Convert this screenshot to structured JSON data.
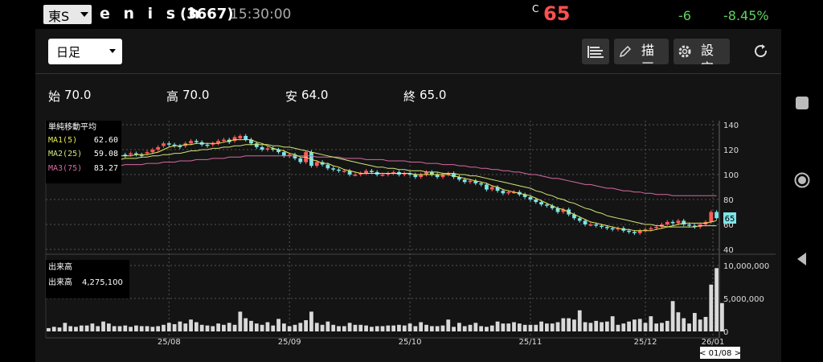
{
  "header": {
    "exchange": "東S",
    "company": "e n i s h",
    "code": "(3667)",
    "time": "15:30:00",
    "close_label": "C",
    "price": "65",
    "change": "-6",
    "change_pct": "-8.45%"
  },
  "toolbar": {
    "period": "日足",
    "draw_label": "描画",
    "settings_label": "設定",
    "icons": [
      "list-icon",
      "pencil-icon",
      "gear-icon",
      "refresh-icon"
    ]
  },
  "ohlc": {
    "open_label": "始",
    "open": "70.0",
    "high_label": "高",
    "high": "70.0",
    "low_label": "安",
    "low": "64.0",
    "close_label": "終",
    "close": "65.0"
  },
  "legend": {
    "title": "単純移動平均",
    "ma1_label": "MA1(5)",
    "ma1_value": "62.60",
    "ma1_color": "#e6e657",
    "ma2_label": "MA2(25)",
    "ma2_value": "59.08",
    "ma2_color": "#cfe67a",
    "ma3_label": "MA3(75)",
    "ma3_value": "83.27",
    "ma3_color": "#d56aa0"
  },
  "volume_legend": {
    "title": "出来高",
    "label": "出来高",
    "value": "4,275,100"
  },
  "cursor_date": "< 01/08 >",
  "colors": {
    "up": "#ff5a5a",
    "down": "#7de3e8",
    "volume": "#d9d9d9",
    "positive": "#5fd35f",
    "negative": "#ff4f4f"
  },
  "chart_data": {
    "type": "candlestick",
    "x_ticks": [
      "25/08",
      "25/09",
      "25/10",
      "25/11",
      "25/12",
      "26/01"
    ],
    "price_ticks": [
      140,
      120,
      100,
      80,
      60,
      40
    ],
    "volume_ticks": [
      "10,000,000",
      "5,000,000",
      "0"
    ],
    "price_ylim": [
      40,
      140
    ],
    "volume_ylim": [
      0,
      10000000
    ],
    "last_price_label": "65",
    "candles_close": [
      110,
      109,
      111,
      110,
      112,
      114,
      113,
      112,
      114,
      115,
      114,
      113,
      115,
      116,
      115,
      117,
      116,
      115,
      118,
      120,
      122,
      125,
      124,
      123,
      122,
      125,
      127,
      126,
      124,
      123,
      125,
      127,
      128,
      126,
      130,
      131,
      128,
      125,
      122,
      120,
      121,
      120,
      118,
      115,
      116,
      113,
      110,
      118,
      107,
      110,
      108,
      105,
      104,
      103,
      103,
      100,
      100,
      101,
      103,
      102,
      100,
      100,
      101,
      102,
      100,
      101,
      100,
      98,
      100,
      102,
      100,
      98,
      100,
      101,
      98,
      96,
      94,
      95,
      93,
      92,
      88,
      90,
      87,
      85,
      86,
      86,
      84,
      82,
      80,
      78,
      76,
      75,
      73,
      70,
      72,
      68,
      65,
      63,
      60,
      60,
      59,
      58,
      57,
      56,
      57,
      55,
      54,
      53,
      55,
      56,
      57,
      58,
      60,
      62,
      61,
      63,
      60,
      59,
      58,
      60,
      62,
      70,
      65
    ],
    "candles_open": [
      111,
      110,
      110,
      111,
      111,
      113,
      114,
      113,
      113,
      114,
      115,
      114,
      114,
      115,
      116,
      116,
      117,
      116,
      117,
      118,
      120,
      123,
      125,
      124,
      123,
      123,
      125,
      127,
      126,
      124,
      124,
      125,
      127,
      128,
      127,
      129,
      131,
      128,
      125,
      122,
      120,
      121,
      120,
      118,
      115,
      116,
      113,
      110,
      118,
      107,
      110,
      108,
      105,
      104,
      103,
      103,
      100,
      100,
      101,
      103,
      102,
      100,
      100,
      101,
      102,
      100,
      101,
      100,
      98,
      100,
      102,
      100,
      98,
      100,
      101,
      98,
      96,
      94,
      95,
      93,
      92,
      88,
      90,
      87,
      85,
      86,
      86,
      84,
      82,
      80,
      78,
      76,
      75,
      73,
      70,
      72,
      68,
      65,
      63,
      60,
      60,
      59,
      58,
      57,
      56,
      57,
      55,
      54,
      53,
      55,
      56,
      57,
      58,
      60,
      62,
      61,
      63,
      60,
      59,
      58,
      60,
      62,
      70
    ],
    "ma1": [
      110,
      110,
      110,
      111,
      111,
      112,
      112,
      113,
      113,
      113,
      114,
      114,
      114,
      115,
      115,
      115,
      116,
      116,
      116,
      117,
      118,
      120,
      122,
      123,
      123,
      124,
      124,
      125,
      125,
      125,
      125,
      125,
      126,
      127,
      128,
      128,
      128,
      128,
      126,
      125,
      123,
      121,
      120,
      119,
      117,
      116,
      114,
      114,
      112,
      111,
      109,
      109,
      107,
      106,
      104,
      103,
      102,
      101,
      101,
      101,
      101,
      101,
      101,
      101,
      101,
      101,
      101,
      100,
      100,
      100,
      100,
      100,
      100,
      100,
      99,
      98,
      97,
      96,
      95,
      94,
      93,
      91,
      90,
      88,
      87,
      86,
      85,
      84,
      83,
      81,
      79,
      77,
      75,
      73,
      72,
      70,
      68,
      66,
      64,
      62,
      61,
      60,
      59,
      58,
      57,
      56,
      56,
      55,
      55,
      55,
      55,
      56,
      57,
      58,
      59,
      60,
      61,
      61,
      61,
      61,
      61,
      62,
      63
    ],
    "ma2": [
      108,
      108,
      109,
      109,
      109,
      110,
      110,
      110,
      111,
      111,
      111,
      112,
      112,
      112,
      113,
      113,
      113,
      114,
      114,
      115,
      115,
      116,
      116,
      117,
      117,
      118,
      119,
      119,
      120,
      120,
      121,
      121,
      122,
      122,
      123,
      123,
      124,
      124,
      124,
      124,
      124,
      123,
      123,
      122,
      122,
      121,
      120,
      119,
      118,
      117,
      116,
      115,
      114,
      113,
      112,
      111,
      110,
      109,
      108,
      107,
      106,
      106,
      105,
      105,
      104,
      104,
      103,
      103,
      103,
      102,
      102,
      102,
      101,
      101,
      101,
      100,
      100,
      99,
      99,
      98,
      97,
      96,
      95,
      94,
      93,
      92,
      91,
      90,
      89,
      87,
      86,
      84,
      83,
      81,
      80,
      78,
      77,
      75,
      73,
      72,
      70,
      69,
      67,
      66,
      65,
      64,
      63,
      62,
      61,
      60,
      60,
      59,
      59,
      58,
      58,
      58,
      58,
      58,
      58,
      59,
      59,
      59,
      59
    ],
    "ma3": [
      104,
      104,
      104,
      105,
      105,
      105,
      105,
      106,
      106,
      106,
      106,
      107,
      107,
      107,
      108,
      108,
      108,
      108,
      109,
      109,
      109,
      110,
      110,
      110,
      111,
      111,
      111,
      112,
      112,
      112,
      113,
      113,
      113,
      114,
      114,
      114,
      115,
      115,
      115,
      115,
      115,
      115,
      115,
      115,
      115,
      115,
      115,
      115,
      115,
      114,
      114,
      114,
      114,
      114,
      113,
      113,
      113,
      113,
      112,
      112,
      112,
      112,
      111,
      111,
      111,
      111,
      110,
      110,
      110,
      109,
      109,
      109,
      108,
      108,
      108,
      107,
      107,
      106,
      106,
      105,
      105,
      104,
      104,
      103,
      103,
      102,
      102,
      101,
      100,
      100,
      99,
      98,
      97,
      97,
      96,
      95,
      94,
      93,
      92,
      92,
      91,
      90,
      89,
      89,
      88,
      87,
      87,
      86,
      86,
      85,
      85,
      84,
      84,
      84,
      83,
      83,
      83,
      83,
      83,
      83,
      83,
      83,
      83
    ],
    "volume": [
      0.5,
      0.7,
      0.6,
      1.3,
      0.8,
      0.7,
      0.9,
      0.9,
      1.2,
      0.8,
      1.5,
      1.2,
      0.8,
      0.8,
      0.9,
      0.7,
      0.9,
      0.8,
      0.8,
      0.7,
      0.8,
      1.0,
      1.3,
      1.1,
      1.5,
      1.2,
      1.8,
      1.4,
      1.0,
      0.9,
      0.8,
      1.2,
      1.0,
      1.3,
      1.0,
      3.0,
      2.0,
      1.6,
      1.2,
      1.0,
      1.4,
      0.9,
      1.9,
      1.2,
      0.8,
      1.0,
      1.3,
      1.7,
      3.0,
      1.3,
      1.0,
      1.5,
      1.0,
      0.8,
      0.8,
      1.3,
      1.0,
      1.0,
      0.9,
      0.7,
      0.8,
      0.8,
      0.9,
      0.9,
      1.0,
      0.9,
      1.2,
      0.8,
      1.4,
      1.0,
      0.8,
      0.8,
      0.9,
      1.8,
      0.7,
      1.3,
      0.8,
      1.0,
      1.3,
      0.8,
      0.7,
      0.9,
      1.5,
      1.2,
      1.2,
      1.4,
      1.2,
      1.0,
      1.0,
      1.0,
      1.5,
      1.2,
      1.2,
      1.4,
      2.0,
      2.0,
      1.8,
      3.2,
      1.4,
      1.3,
      1.6,
      1.4,
      1.5,
      2.3,
      1.0,
      1.2,
      1.5,
      1.8,
      1.9,
      1.3,
      2.3,
      1.2,
      1.3,
      1.6,
      4.6,
      2.9,
      2.0,
      1.2,
      2.8,
      1.8,
      2.2,
      7.1,
      9.6,
      4.3
    ]
  }
}
